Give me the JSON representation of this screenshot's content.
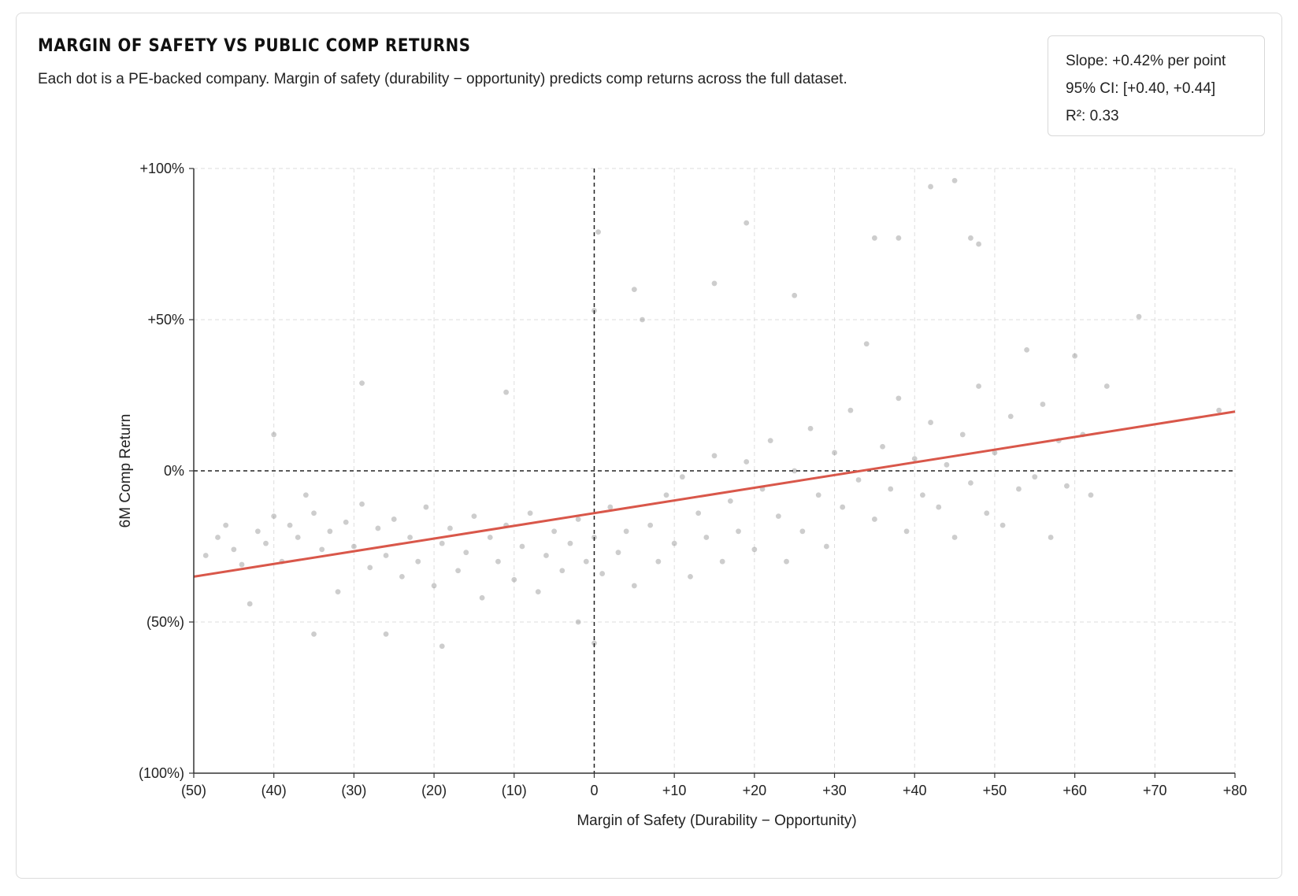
{
  "title": "MARGIN OF SAFETY VS PUBLIC COMP RETURNS",
  "subtitle": "Each dot is a PE-backed company. Margin of safety (durability − opportunity) predicts comp returns across the full dataset.",
  "stats": {
    "slope": "Slope: +0.42% per point",
    "ci": "95% CI: [+0.40, +0.44]",
    "r2": "R²: 0.33"
  },
  "chart_data": {
    "type": "scatter",
    "title": "MARGIN OF SAFETY VS PUBLIC COMP RETURNS",
    "xlabel": "Margin of Safety (Durability − Opportunity)",
    "ylabel": "6M Comp Return",
    "xlim": [
      -50,
      80
    ],
    "ylim": [
      -100,
      100
    ],
    "x_ticks": [
      -50,
      -40,
      -30,
      -20,
      -10,
      0,
      10,
      20,
      30,
      40,
      50,
      60,
      70,
      80
    ],
    "x_tick_labels": [
      "(50)",
      "(40)",
      "(30)",
      "(20)",
      "(10)",
      "0",
      "+10",
      "+20",
      "+30",
      "+40",
      "+50",
      "+60",
      "+70",
      "+80"
    ],
    "y_ticks": [
      -100,
      -50,
      0,
      50,
      100
    ],
    "y_tick_labels": [
      "(100%)",
      "(50%)",
      "0%",
      "+50%",
      "+100%"
    ],
    "grid": true,
    "reference_lines": {
      "x": 0,
      "y": 0
    },
    "regression": {
      "x": [
        -50,
        80
      ],
      "y": [
        -35,
        19.6
      ],
      "color": "#d9574a"
    },
    "point_color": "#707070",
    "series": [
      {
        "points": [
          [
            -48.5,
            -28
          ],
          [
            -47,
            -22
          ],
          [
            -46,
            -18
          ],
          [
            -45,
            -26
          ],
          [
            -44,
            -31
          ],
          [
            -43,
            -44
          ],
          [
            -42,
            -20
          ],
          [
            -41,
            -24
          ],
          [
            -40,
            -15
          ],
          [
            -40,
            12
          ],
          [
            -39,
            -30
          ],
          [
            -38,
            -18
          ],
          [
            -37,
            -22
          ],
          [
            -36,
            -8
          ],
          [
            -35,
            -54
          ],
          [
            -35,
            -14
          ],
          [
            -34,
            -26
          ],
          [
            -33,
            -20
          ],
          [
            -32,
            -40
          ],
          [
            -31,
            -17
          ],
          [
            -30,
            -25
          ],
          [
            -29,
            -11
          ],
          [
            -29,
            29
          ],
          [
            -28,
            -32
          ],
          [
            -27,
            -19
          ],
          [
            -26,
            -54
          ],
          [
            -26,
            -28
          ],
          [
            -25,
            -16
          ],
          [
            -24,
            -35
          ],
          [
            -23,
            -22
          ],
          [
            -22,
            -30
          ],
          [
            -21,
            -12
          ],
          [
            -20,
            -38
          ],
          [
            -19,
            -58
          ],
          [
            -19,
            -24
          ],
          [
            -18,
            -19
          ],
          [
            -17,
            -33
          ],
          [
            -16,
            -27
          ],
          [
            -15,
            -15
          ],
          [
            -14,
            -42
          ],
          [
            -13,
            -22
          ],
          [
            -12,
            -30
          ],
          [
            -11,
            -18
          ],
          [
            -11,
            26
          ],
          [
            -10,
            -36
          ],
          [
            -9,
            -25
          ],
          [
            -8,
            -14
          ],
          [
            -7,
            -40
          ],
          [
            -6,
            -28
          ],
          [
            -5,
            -20
          ],
          [
            -4,
            -33
          ],
          [
            -3,
            -24
          ],
          [
            -2,
            -50
          ],
          [
            -2,
            -16
          ],
          [
            -1,
            -30
          ],
          [
            0,
            -57
          ],
          [
            0,
            -22
          ],
          [
            0,
            53
          ],
          [
            0.5,
            79
          ],
          [
            1,
            -34
          ],
          [
            2,
            -12
          ],
          [
            3,
            -27
          ],
          [
            4,
            -20
          ],
          [
            5,
            60
          ],
          [
            5,
            -38
          ],
          [
            6,
            50
          ],
          [
            7,
            -18
          ],
          [
            8,
            -30
          ],
          [
            9,
            -8
          ],
          [
            10,
            -24
          ],
          [
            11,
            -2
          ],
          [
            12,
            -35
          ],
          [
            13,
            -14
          ],
          [
            14,
            -22
          ],
          [
            15,
            62
          ],
          [
            15,
            5
          ],
          [
            16,
            -30
          ],
          [
            17,
            -10
          ],
          [
            18,
            -20
          ],
          [
            19,
            82
          ],
          [
            19,
            3
          ],
          [
            20,
            -26
          ],
          [
            21,
            -6
          ],
          [
            22,
            10
          ],
          [
            23,
            -15
          ],
          [
            24,
            -30
          ],
          [
            25,
            58
          ],
          [
            25,
            0
          ],
          [
            26,
            -20
          ],
          [
            27,
            14
          ],
          [
            28,
            -8
          ],
          [
            29,
            -25
          ],
          [
            30,
            6
          ],
          [
            31,
            -12
          ],
          [
            32,
            20
          ],
          [
            33,
            -3
          ],
          [
            34,
            42
          ],
          [
            35,
            77
          ],
          [
            35,
            -16
          ],
          [
            36,
            8
          ],
          [
            37,
            -6
          ],
          [
            38,
            77
          ],
          [
            38,
            24
          ],
          [
            39,
            -20
          ],
          [
            40,
            4
          ],
          [
            41,
            -8
          ],
          [
            42,
            94
          ],
          [
            42,
            16
          ],
          [
            43,
            -12
          ],
          [
            44,
            2
          ],
          [
            45,
            96
          ],
          [
            45,
            -22
          ],
          [
            46,
            12
          ],
          [
            47,
            77
          ],
          [
            47,
            -4
          ],
          [
            48,
            75
          ],
          [
            48,
            28
          ],
          [
            49,
            -14
          ],
          [
            50,
            6
          ],
          [
            51,
            -18
          ],
          [
            52,
            18
          ],
          [
            53,
            -6
          ],
          [
            54,
            40
          ],
          [
            55,
            -2
          ],
          [
            56,
            22
          ],
          [
            57,
            -22
          ],
          [
            58,
            10
          ],
          [
            59,
            -5
          ],
          [
            60,
            38
          ],
          [
            61,
            12
          ],
          [
            62,
            -8
          ],
          [
            64,
            28
          ],
          [
            68,
            51
          ],
          [
            78,
            20
          ]
        ]
      }
    ]
  }
}
